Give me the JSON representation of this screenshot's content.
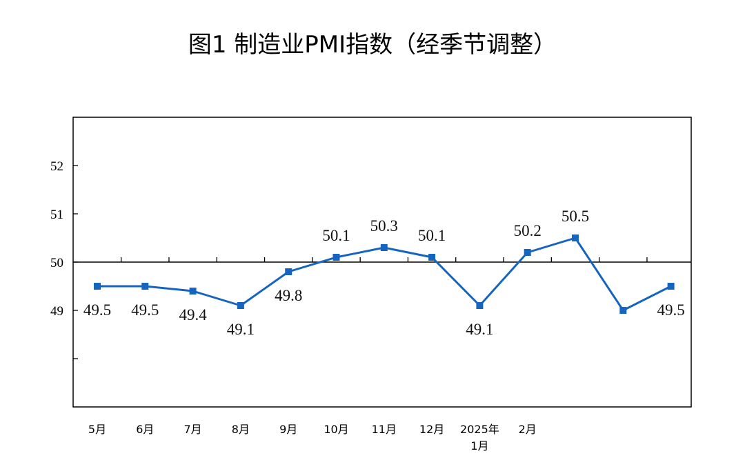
{
  "chart_data": {
    "type": "line",
    "title": "图1  制造业PMI指数（经季节调整）",
    "xlabel": "",
    "ylabel": "",
    "categories": [
      [
        "5月"
      ],
      [
        "6月"
      ],
      [
        "7月"
      ],
      [
        "8月"
      ],
      [
        "9月"
      ],
      [
        "10月"
      ],
      [
        "11月"
      ],
      [
        "12月"
      ],
      [
        "2025年",
        "1月"
      ],
      [
        "2月"
      ],
      [
        ""
      ],
      [
        ""
      ],
      [
        ""
      ]
    ],
    "series": [
      {
        "name": "",
        "values": [
          49.5,
          49.5,
          49.4,
          49.1,
          49.8,
          50.1,
          50.3,
          50.1,
          49.1,
          50.2,
          50.5,
          49.0,
          49.5
        ],
        "data_labels": [
          "49.5",
          "49.5",
          "49.4",
          "49.1",
          "49.8",
          "50.1",
          "50.3",
          "50.1",
          "49.1",
          "50.2",
          "50.5",
          "",
          "49.5"
        ],
        "label_positions": [
          "below",
          "below",
          "below",
          "below",
          "below",
          "above",
          "above",
          "above",
          "below",
          "above",
          "above",
          "none",
          "below"
        ],
        "color": "#1565C0"
      }
    ],
    "yticks": [
      "52",
      "51",
      "50",
      "49",
      ""
    ],
    "ylim": [
      47,
      53
    ],
    "reference_line": 50,
    "grid": false,
    "legend": "none"
  }
}
